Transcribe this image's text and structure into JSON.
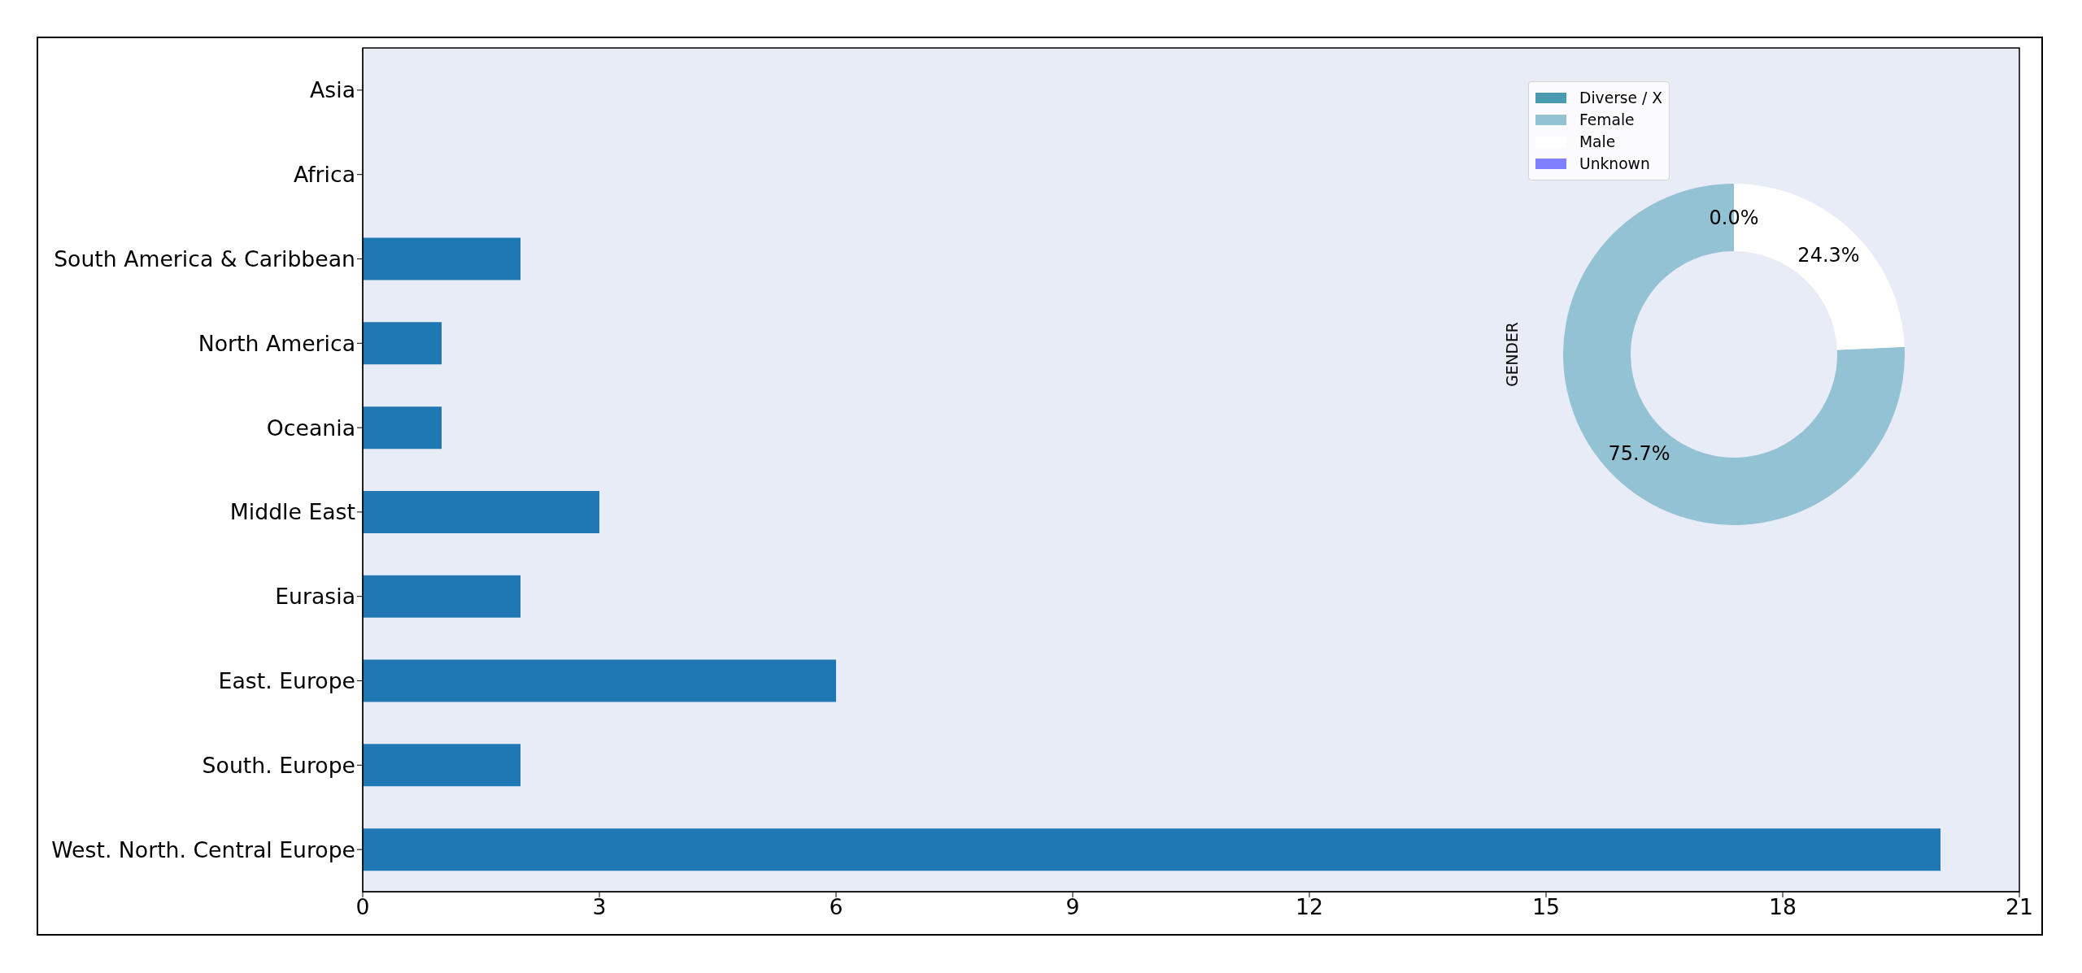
{
  "chart_data": [
    {
      "type": "bar",
      "orientation": "horizontal",
      "categories": [
        "Asia",
        "Africa",
        "South America & Caribbean",
        "North America",
        "Oceania",
        "Middle East",
        "Eurasia",
        "East. Europe",
        "South. Europe",
        "West. North. Central Europe"
      ],
      "values": [
        0,
        0,
        2,
        1,
        1,
        3,
        2,
        6,
        2,
        20
      ],
      "color": "#1f77b4",
      "xlim": [
        0,
        21
      ],
      "xticks": [
        0,
        3,
        6,
        9,
        12,
        15,
        18,
        21
      ]
    },
    {
      "type": "donut",
      "ylabel": "GENDER",
      "categories": [
        "Diverse / X",
        "Female",
        "Male",
        "Unknown"
      ],
      "values": [
        0,
        75.7,
        24.3,
        0
      ],
      "colors": [
        "#4a9bb0",
        "#92c2d4",
        "#ffffff",
        "#8080ff"
      ],
      "value_labels": [
        "0.0%",
        "75.7%",
        "24.3%",
        null
      ],
      "legend": "top left"
    }
  ]
}
